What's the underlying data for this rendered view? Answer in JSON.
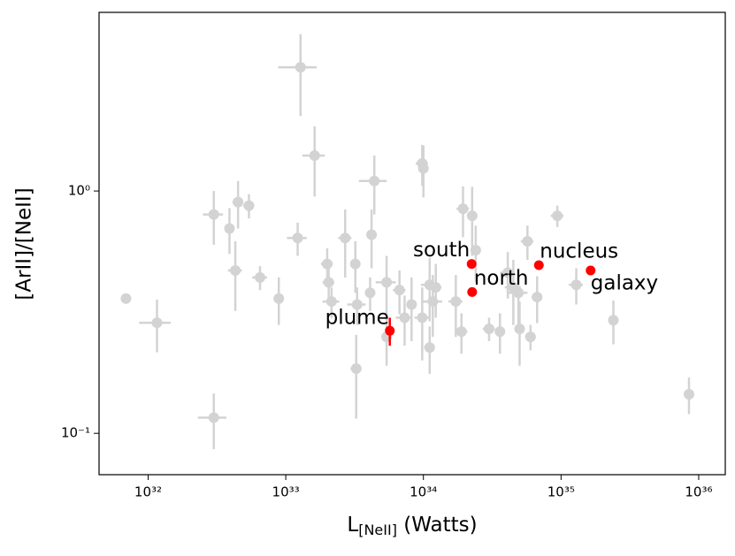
{
  "chart_data": {
    "type": "scatter",
    "xlabel": [
      "L",
      "[NeII]",
      " (Watts)"
    ],
    "ylabel": "[ArII]/[NeII]",
    "xscale": "log",
    "yscale": "log",
    "xlim": [
      4.4e+31,
      1.56e+36
    ],
    "ylim": [
      0.0675,
      5.46
    ],
    "xticks": [
      {
        "value": 1e+32,
        "label": "10³²"
      },
      {
        "value": 1e+33,
        "label": "10³³"
      },
      {
        "value": 1e+34,
        "label": "10³⁴"
      },
      {
        "value": 1e+35,
        "label": "10³⁵"
      },
      {
        "value": 1e+36,
        "label": "10³⁶"
      }
    ],
    "yticks": [
      {
        "value": 0.1,
        "label": "10⁻¹"
      },
      {
        "value": 1,
        "label": "10⁰"
      }
    ],
    "background_points": {
      "color": "#d3d3d3",
      "x": [
        6.9e+31,
        1.16e+32,
        3e+32,
        3e+32,
        3.9e+32,
        4.3e+32,
        4.5e+32,
        5.4e+32,
        6.5e+32,
        8.9e+32,
        1.22e+33,
        1.28e+33,
        1.62e+33,
        2e+33,
        2.05e+33,
        2.15e+33,
        2.7e+33,
        3.2e+33,
        3.3e+33,
        3.25e+33,
        4.1e+33,
        4.2e+33,
        4.4e+33,
        5.4e+33,
        5.4e+33,
        6.7e+33,
        7.3e+33,
        8.2e+33,
        9.8e+33,
        1e+34,
        9.8e+33,
        1.11e+34,
        1.11e+34,
        1.17e+34,
        1.23e+34,
        1.72e+34,
        1.89e+34,
        1.94e+34,
        2.26e+34,
        2.4e+34,
        3e+34,
        3.6e+34,
        4.1e+34,
        4.5e+34,
        4.9e+34,
        5e+34,
        5.7e+34,
        6e+34,
        6.7e+34,
        9.4e+34,
        1.29e+35,
        2.4e+35,
        8.5e+35
      ],
      "y": [
        0.36,
        0.286,
        0.116,
        0.8,
        0.7,
        0.47,
        0.9,
        0.87,
        0.44,
        0.36,
        0.64,
        3.24,
        1.4,
        0.5,
        0.42,
        0.35,
        0.64,
        0.5,
        0.34,
        0.185,
        0.38,
        0.66,
        1.1,
        0.42,
        0.25,
        0.39,
        0.3,
        0.34,
        1.3,
        1.24,
        0.3,
        0.41,
        0.226,
        0.35,
        0.4,
        0.35,
        0.263,
        0.845,
        0.79,
        0.57,
        0.27,
        0.263,
        0.46,
        0.4,
        0.38,
        0.27,
        0.62,
        0.25,
        0.365,
        0.79,
        0.41,
        0.293,
        0.145
      ],
      "xerr": [
        0,
        3e+31,
        7e+31,
        5e+31,
        3e+31,
        5e+31,
        4e+31,
        5e+31,
        8e+31,
        5e+31,
        2e+32,
        4e+32,
        3e+32,
        2e+32,
        2e+32,
        3e+32,
        3e+32,
        2e+32,
        5e+32,
        3e+32,
        3e+32,
        3e+32,
        1e+33,
        9e+32,
        4e+32,
        7e+32,
        1e+33,
        6e+32,
        1e+33,
        5e+32,
        1.2e+33,
        1.5e+33,
        1e+33,
        2e+33,
        1.2e+33,
        2e+33,
        2e+33,
        2e+33,
        1.5e+33,
        2e+33,
        3e+33,
        3e+33,
        5e+33,
        6e+33,
        8e+33,
        4e+33,
        6e+33,
        5e+33,
        6e+33,
        1e+34,
        1.5e+34,
        0,
        0
      ],
      "yerr": [
        0,
        0.07,
        0.03,
        0.2,
        0.15,
        0.15,
        0.2,
        0.1,
        0.05,
        0.08,
        0.1,
        1.2,
        0.45,
        0.08,
        0.07,
        0.05,
        0.2,
        0.12,
        0.06,
        0.07,
        0.06,
        0.18,
        0.3,
        0.12,
        0.06,
        0.08,
        0.07,
        0.1,
        0.25,
        0.3,
        0.1,
        0.12,
        0.05,
        0.1,
        0.1,
        0.1,
        0.05,
        0.2,
        0.25,
        0.15,
        0.03,
        0.05,
        0.1,
        0.12,
        0.1,
        0.08,
        0.1,
        0.03,
        0.08,
        0.08,
        0.07,
        0.06,
        0.025
      ]
    },
    "highlight_points": {
      "color": "#ff0000",
      "labels": [
        "south",
        "north",
        "nucleus",
        "galaxy",
        "plume"
      ],
      "x": [
        2.24e+34,
        2.26e+34,
        6.9e+34,
        1.64e+35,
        5.7e+33
      ],
      "y": [
        0.5,
        0.383,
        0.494,
        0.47,
        0.265
      ],
      "yerr": [
        0,
        0,
        0,
        0,
        0.035
      ]
    }
  }
}
